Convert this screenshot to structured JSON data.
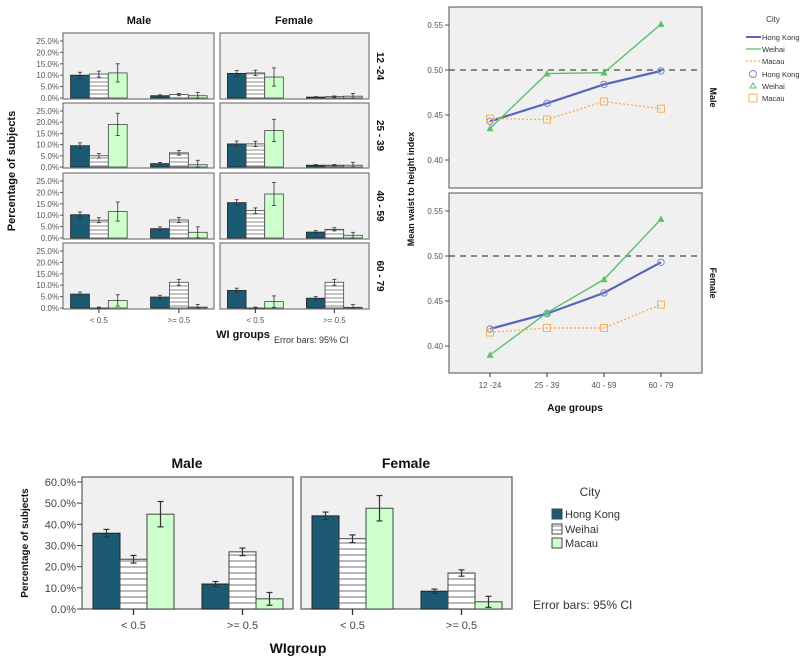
{
  "chart_data": [
    {
      "type": "bar",
      "title": "",
      "facet_columns": [
        "Male",
        "Female"
      ],
      "facet_rows": [
        "12 -24",
        "25 - 39",
        "40 - 59",
        "60 - 79"
      ],
      "categories": [
        "< 0.5",
        ">= 0.5"
      ],
      "xlabel": "WI groups",
      "ylabel": "Percentage of subjects",
      "ylim": [
        0,
        25
      ],
      "yticks": [
        "0.0%",
        "5.0%",
        "10.0%",
        "15.0%",
        "20.0%",
        "25.0%"
      ],
      "note": "Error bars: 95% CI",
      "series_names": [
        "Hong Kong",
        "Weihai",
        "Macau"
      ],
      "panels": [
        {
          "sex": "Male",
          "age": "12 -24",
          "values": [
            [
              10.0,
              10.5,
              11.0
            ],
            [
              1.0,
              1.5,
              1.0
            ]
          ],
          "err": [
            [
              1.3,
              1.3,
              4.0
            ],
            [
              0.4,
              0.5,
              1.5
            ]
          ]
        },
        {
          "sex": "Female",
          "age": "12 -24",
          "values": [
            [
              10.8,
              11.0,
              9.2
            ],
            [
              0.4,
              0.6,
              0.8
            ]
          ],
          "err": [
            [
              1.2,
              1.2,
              4.0
            ],
            [
              0.2,
              0.3,
              1.2
            ]
          ]
        },
        {
          "sex": "Male",
          "age": "25 - 39",
          "values": [
            [
              9.5,
              5.0,
              19.0
            ],
            [
              1.5,
              6.3,
              1.0
            ]
          ],
          "err": [
            [
              1.3,
              1.0,
              5.0
            ],
            [
              0.5,
              1.0,
              2.0
            ]
          ]
        },
        {
          "sex": "Female",
          "age": "25 - 39",
          "values": [
            [
              10.3,
              10.3,
              16.3
            ],
            [
              0.8,
              0.8,
              0.8
            ]
          ],
          "err": [
            [
              1.3,
              1.2,
              5.0
            ],
            [
              0.3,
              0.3,
              1.3
            ]
          ]
        },
        {
          "sex": "Male",
          "age": "40 - 59",
          "values": [
            [
              10.2,
              7.8,
              11.6
            ],
            [
              4.1,
              7.9,
              2.5
            ]
          ],
          "err": [
            [
              1.2,
              1.1,
              4.2
            ],
            [
              0.8,
              1.1,
              2.4
            ]
          ]
        },
        {
          "sex": "Female",
          "age": "40 - 59",
          "values": [
            [
              15.5,
              12.0,
              19.3
            ],
            [
              2.6,
              3.8,
              1.2
            ]
          ],
          "err": [
            [
              1.3,
              1.2,
              5.0
            ],
            [
              0.6,
              0.7,
              1.3
            ]
          ]
        },
        {
          "sex": "Male",
          "age": "60 - 79",
          "values": [
            [
              6.1,
              0.0,
              3.3
            ],
            [
              4.8,
              11.3,
              0.4
            ]
          ],
          "err": [
            [
              0.9,
              0.4,
              2.5
            ],
            [
              0.8,
              1.3,
              1.2
            ]
          ]
        },
        {
          "sex": "Female",
          "age": "60 - 79",
          "values": [
            [
              7.7,
              0.0,
              2.8
            ],
            [
              4.3,
              11.3,
              0.3
            ]
          ],
          "err": [
            [
              1.0,
              0.4,
              2.5
            ],
            [
              0.7,
              1.3,
              1.2
            ]
          ]
        }
      ]
    },
    {
      "type": "line",
      "title": "",
      "facet_rows": [
        "Male",
        "Female"
      ],
      "x": [
        "12 -24",
        "25 - 39",
        "40 - 59",
        "60 - 79"
      ],
      "xlabel": "Age groups",
      "ylabel": "Mean waist to height index",
      "ylim": [
        0.375,
        0.57
      ],
      "yticks": [
        "0.40",
        "0.45",
        "0.50",
        "0.55"
      ],
      "reference_line": 0.5,
      "legend_title": "City",
      "legend_position": "top-right",
      "legend_entries": [
        "Hong Kong",
        "Weihai",
        "Macau",
        "Hong Kong",
        "Weihai",
        "Macau"
      ],
      "series": [
        {
          "name": "Hong Kong",
          "panel": "Male",
          "values": [
            0.443,
            0.463,
            0.484,
            0.499
          ]
        },
        {
          "name": "Weihai",
          "panel": "Male",
          "values": [
            0.435,
            0.496,
            0.497,
            0.551
          ]
        },
        {
          "name": "Macau",
          "panel": "Male",
          "values": [
            0.446,
            0.445,
            0.465,
            0.457
          ]
        },
        {
          "name": "Hong Kong",
          "panel": "Female",
          "values": [
            0.419,
            0.436,
            0.459,
            0.493
          ]
        },
        {
          "name": "Weihai",
          "panel": "Female",
          "values": [
            0.39,
            0.437,
            0.474,
            0.541
          ]
        },
        {
          "name": "Macau",
          "panel": "Female",
          "values": [
            0.415,
            0.42,
            0.42,
            0.446
          ]
        }
      ]
    },
    {
      "type": "bar",
      "title": "",
      "facet_columns": [
        "Male",
        "Female"
      ],
      "categories": [
        "< 0.5",
        ">= 0.5"
      ],
      "xlabel": "WIgroup",
      "ylabel": "Percentage of subjects",
      "ylim": [
        0,
        60
      ],
      "yticks": [
        "0.0%",
        "10.0%",
        "20.0%",
        "30.0%",
        "40.0%",
        "50.0%",
        "60.0%"
      ],
      "legend_title": "City",
      "legend_position": "right",
      "note": "Error bars: 95% CI",
      "series_names": [
        "Hong Kong",
        "Weihai",
        "Macau"
      ],
      "panels": [
        {
          "sex": "Male",
          "values": [
            [
              35.8,
              23.5,
              44.8
            ],
            [
              11.8,
              27.0,
              4.8
            ]
          ],
          "err": [
            [
              1.8,
              1.8,
              6.0
            ],
            [
              1.2,
              1.8,
              3.0
            ]
          ]
        },
        {
          "sex": "Female",
          "values": [
            [
              44.0,
              33.2,
              47.6
            ],
            [
              8.4,
              17.0,
              3.4
            ]
          ],
          "err": [
            [
              1.8,
              1.8,
              6.0
            ],
            [
              1.0,
              1.5,
              2.6
            ]
          ]
        }
      ]
    }
  ],
  "colors": {
    "hong_kong_bar": "#1b5a72",
    "weihai_bar": "#ffffff",
    "macau_bar": "#ccffcc",
    "hong_kong_line": "#5566bb",
    "weihai_line": "#5cc06b",
    "macau_line": "#f5b25a",
    "panel_bg": "#f0f0f0"
  }
}
